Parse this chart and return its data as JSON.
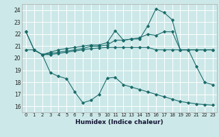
{
  "xlabel": "Humidex (Indice chaleur)",
  "bg_color": "#cde8e8",
  "grid_color": "#ffffff",
  "line_color": "#1a6b6b",
  "xlim": [
    -0.5,
    23.5
  ],
  "ylim": [
    15.5,
    24.5
  ],
  "yticks": [
    16,
    17,
    18,
    19,
    20,
    21,
    22,
    23,
    24
  ],
  "xticks": [
    0,
    1,
    2,
    3,
    4,
    5,
    6,
    7,
    8,
    9,
    10,
    11,
    12,
    13,
    14,
    15,
    16,
    17,
    18,
    19,
    20,
    21,
    22,
    23
  ],
  "line1_x": [
    0,
    1,
    2,
    3,
    4,
    5,
    6,
    7,
    8,
    9,
    10,
    11,
    12,
    13,
    14,
    15,
    16,
    17,
    18,
    19,
    20,
    21,
    22,
    23
  ],
  "line1_y": [
    22.2,
    20.7,
    20.3,
    20.5,
    20.7,
    20.8,
    20.9,
    21.0,
    21.1,
    21.1,
    21.3,
    22.3,
    21.5,
    21.6,
    21.6,
    22.7,
    24.1,
    23.8,
    23.2,
    20.7,
    20.7,
    20.7,
    20.7,
    20.7
  ],
  "line2_x": [
    0,
    1,
    2,
    3,
    4,
    5,
    6,
    7,
    8,
    9,
    10,
    11,
    12,
    13,
    14,
    15,
    16,
    17,
    18,
    19,
    20,
    21,
    22,
    23
  ],
  "line2_y": [
    22.2,
    20.7,
    20.3,
    20.4,
    20.5,
    20.6,
    20.7,
    20.8,
    21.0,
    21.0,
    21.1,
    21.5,
    21.5,
    21.6,
    21.7,
    22.0,
    21.9,
    22.2,
    22.2,
    20.7,
    20.7,
    19.3,
    18.0,
    17.8
  ],
  "line3_x": [
    1,
    2,
    3,
    4,
    5,
    6,
    7,
    8,
    9,
    10,
    11,
    12,
    13,
    14,
    15,
    16,
    17,
    18,
    19,
    20,
    21,
    22,
    23
  ],
  "line3_y": [
    20.7,
    20.3,
    18.8,
    18.5,
    18.3,
    17.2,
    16.3,
    16.5,
    17.0,
    18.35,
    18.4,
    17.8,
    17.6,
    17.4,
    17.2,
    17.0,
    16.8,
    16.6,
    16.4,
    16.3,
    16.2,
    16.15,
    16.1
  ],
  "line4_x": [
    0,
    1,
    2,
    3,
    4,
    5,
    6,
    7,
    8,
    9,
    10,
    11,
    12,
    13,
    14,
    15,
    16,
    17,
    18,
    19,
    20,
    21,
    22,
    23
  ],
  "line4_y": [
    20.7,
    20.7,
    20.3,
    20.3,
    20.4,
    20.5,
    20.6,
    20.7,
    20.8,
    20.85,
    20.9,
    20.9,
    20.9,
    20.9,
    20.9,
    20.9,
    20.7,
    20.7,
    20.7,
    20.7,
    20.7,
    20.7,
    20.7,
    20.7
  ]
}
